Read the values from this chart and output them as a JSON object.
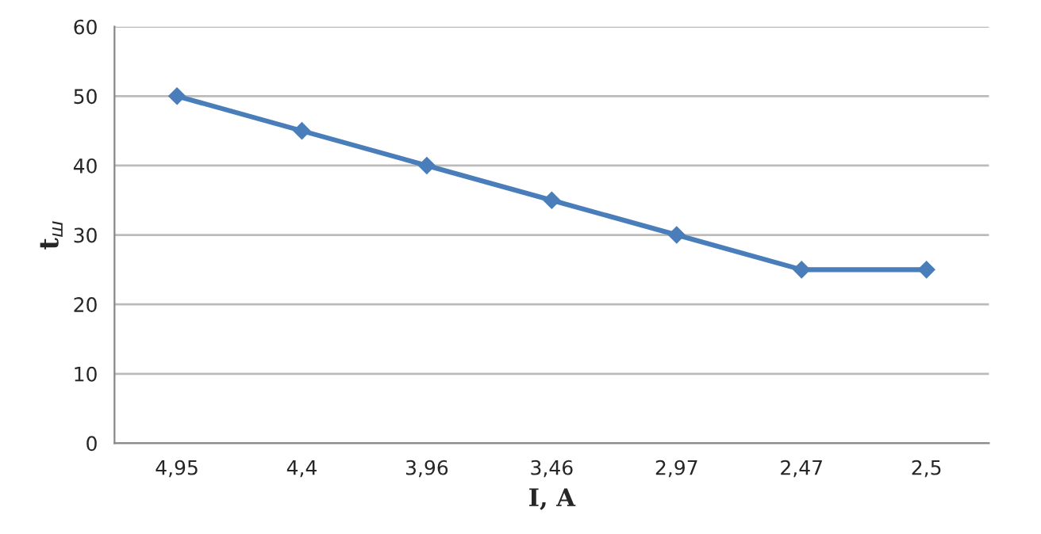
{
  "chart_data": {
    "type": "line",
    "xlabel": "I, A",
    "ylabel": "t$_{ш}$",
    "categories": [
      "4,95",
      "4,4",
      "3,96",
      "3,46",
      "2,97",
      "2,47",
      "2,5"
    ],
    "series": [
      {
        "color": "#4a7ebb",
        "values": [
          50,
          45,
          40,
          35,
          30,
          25,
          25
        ]
      }
    ],
    "ylim": [
      0,
      60
    ],
    "yticks": [
      0,
      10,
      20,
      30,
      40,
      50,
      60
    ],
    "grid": "y",
    "marker": "diamond",
    "line_style": "solid",
    "legend": false
  }
}
